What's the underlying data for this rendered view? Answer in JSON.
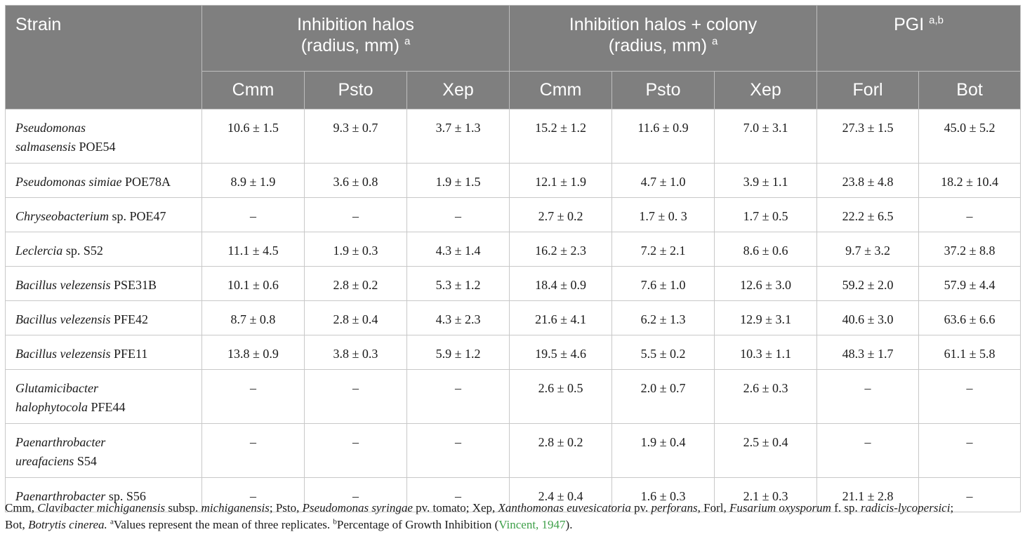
{
  "header": {
    "strain": "Strain",
    "group1_line1": "Inhibition halos",
    "group1_line2": "(radius, mm)",
    "group1_sup": "a",
    "group2_line1": "Inhibition halos + colony",
    "group2_line2": "(radius, mm)",
    "group2_sup": "a",
    "group3": "PGI",
    "group3_sup": "a,b",
    "sub": [
      "Cmm",
      "Psto",
      "Xep",
      "Cmm",
      "Psto",
      "Xep",
      "Forl",
      "Bot"
    ]
  },
  "rows": [
    {
      "genus": "Pseudomonas",
      "genus2": "salmasensis",
      "rest": " POE54",
      "values": [
        "10.6 ± 1.5",
        "9.3 ± 0.7",
        "3.7 ± 1.3",
        "15.2 ± 1.2",
        "11.6 ± 0.9",
        "7.0 ± 3.1",
        "27.3 ± 1.5",
        "45.0 ± 5.2"
      ]
    },
    {
      "genus": "Pseudomonas simiae",
      "rest": " POE78A",
      "values": [
        "8.9 ± 1.9",
        "3.6 ± 0.8",
        "1.9 ± 1.5",
        "12.1 ± 1.9",
        "4.7 ± 1.0",
        "3.9 ± 1.1",
        "23.8 ± 4.8",
        "18.2 ± 10.4"
      ]
    },
    {
      "genus": "Chryseobacterium",
      "rest": " sp. POE47",
      "values": [
        "–",
        "–",
        "–",
        "2.7 ± 0.2",
        "1.7 ± 0. 3",
        "1.7 ± 0.5",
        "22.2 ± 6.5",
        "–"
      ]
    },
    {
      "genus": "Leclercia",
      "rest": " sp. S52",
      "values": [
        "11.1 ± 4.5",
        "1.9 ± 0.3",
        "4.3 ± 1.4",
        "16.2 ± 2.3",
        "7.2 ± 2.1",
        "8.6 ± 0.6",
        "9.7 ± 3.2",
        "37.2 ± 8.8"
      ]
    },
    {
      "genus": "Bacillus velezensis",
      "rest": " PSE31B",
      "values": [
        "10.1 ± 0.6",
        "2.8 ± 0.2",
        "5.3 ± 1.2",
        "18.4 ± 0.9",
        "7.6 ± 1.0",
        "12.6 ± 3.0",
        "59.2 ± 2.0",
        "57.9 ± 4.4"
      ]
    },
    {
      "genus": "Bacillus velezensis",
      "rest": " PFE42",
      "values": [
        "8.7 ± 0.8",
        "2.8 ± 0.4",
        "4.3 ± 2.3",
        "21.6 ± 4.1",
        "6.2 ± 1.3",
        "12.9 ± 3.1",
        "40.6 ± 3.0",
        "63.6 ± 6.6"
      ]
    },
    {
      "genus": "Bacillus velezensis",
      "rest": " PFE11",
      "values": [
        "13.8 ± 0.9",
        "3.8 ± 0.3",
        "5.9 ± 1.2",
        "19.5 ± 4.6",
        "5.5 ± 0.2",
        "10.3 ± 1.1",
        "48.3 ± 1.7",
        "61.1 ± 5.8"
      ]
    },
    {
      "genus": "Glutamicibacter",
      "genus2": "halophytocola",
      "rest": " PFE44",
      "values": [
        "–",
        "–",
        "–",
        "2.6 ± 0.5",
        "2.0 ± 0.7",
        "2.6 ± 0.3",
        "–",
        "–"
      ]
    },
    {
      "genus": "Paenarthrobacter",
      "genus2": "ureafaciens",
      "rest": " S54",
      "values": [
        "–",
        "–",
        "–",
        "2.8 ± 0.2",
        "1.9 ± 0.4",
        "2.5 ± 0.4",
        "–",
        "–"
      ]
    },
    {
      "genus": "Paenarthrobacter",
      "rest": " sp. S56",
      "values": [
        "–",
        "–",
        "–",
        "2.4 ± 0.4",
        "1.6 ± 0.3",
        "2.1 ± 0.3",
        "21.1 ± 2.8",
        "–"
      ]
    }
  ],
  "note": {
    "t1": "Cmm, ",
    "i1": "Clavibacter michiganensis",
    "t2": " subsp. ",
    "i2": "michiganensis",
    "t3": "; Psto, ",
    "i3": "Pseudomonas syringae",
    "t4": " pv. tomato; Xep, ",
    "i4": "Xanthomonas euvesicatoria",
    "t5": " pv. ",
    "i5": "perforans",
    "t6": ", Forl, ",
    "i6": "Fusarium oxysporum",
    "t7": " f. sp. ",
    "i7": "radicis-lycopersici",
    "t8": ";",
    "t9": "Bot, ",
    "i9": "Botrytis cinerea.",
    "sup_a": "a",
    "t10": "Values represent the mean of three replicates. ",
    "sup_b": "b",
    "t11": "Percentage of Growth Inhibition (",
    "ref": "Vincent, 1947",
    "t12": ").",
    "ref_color": "#3fa04a"
  },
  "colors": {
    "header_bg": "#7f7f7f",
    "header_text": "#ffffff",
    "grid": "#c8c8c8"
  }
}
